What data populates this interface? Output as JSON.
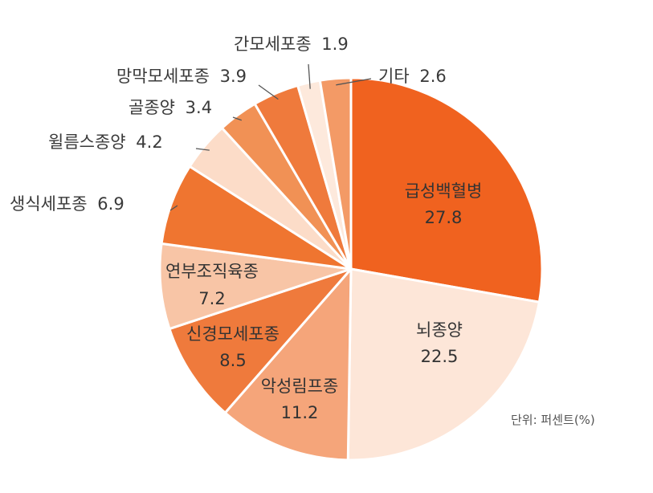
{
  "chart_data": {
    "type": "pie",
    "unit_label": "단위: 퍼센트(%)",
    "slices": [
      {
        "name": "급성백혈병",
        "value": 27.8,
        "value_label": "27.8",
        "color": "#f0621f"
      },
      {
        "name": "뇌종양",
        "value": 22.5,
        "value_label": "22.5",
        "color": "#fde6d8"
      },
      {
        "name": "악성림프종",
        "value": 11.2,
        "value_label": "11.2",
        "color": "#f5a57a"
      },
      {
        "name": "신경모세포종",
        "value": 8.5,
        "value_label": "8.5",
        "color": "#ef7a3c"
      },
      {
        "name": "연부조직육종",
        "value": 7.2,
        "value_label": "7.2",
        "color": "#f8c5a6"
      },
      {
        "name": "생식세포종",
        "value": 6.9,
        "value_label": "6.9",
        "color": "#ef7530"
      },
      {
        "name": "윌름스종양",
        "value": 4.2,
        "value_label": "4.2",
        "color": "#fcdcc8"
      },
      {
        "name": "골종양",
        "value": 3.4,
        "value_label": "3.4",
        "color": "#f19155"
      },
      {
        "name": "망막모세포종",
        "value": 3.9,
        "value_label": "3.9",
        "color": "#ef7a3c"
      },
      {
        "name": "간모세포종",
        "value": 1.9,
        "value_label": "1.9",
        "color": "#fde9dc"
      },
      {
        "name": "기타",
        "value": 2.6,
        "value_label": "2.6",
        "color": "#f39a66"
      }
    ]
  }
}
